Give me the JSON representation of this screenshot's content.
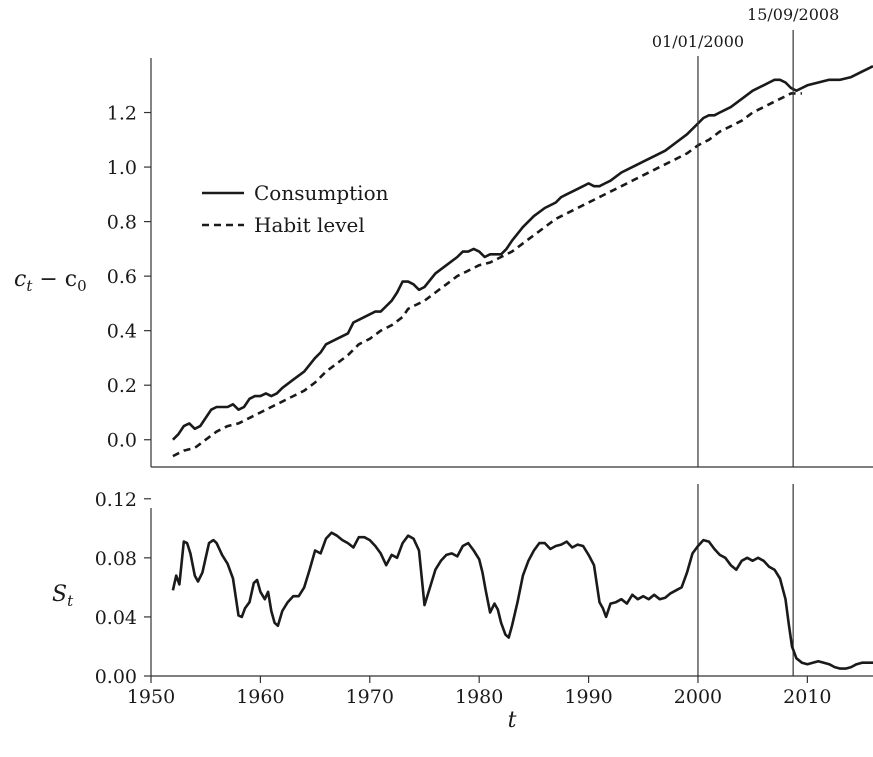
{
  "chart_data": [
    {
      "type": "line",
      "ylabel": "c_t − c_0",
      "ylim": [
        -0.1,
        1.4
      ],
      "yticks": [
        0.0,
        0.2,
        0.4,
        0.6,
        0.8,
        1.0,
        1.2
      ],
      "ytick_labels": [
        "0.0",
        "0.2",
        "0.4",
        "0.6",
        "0.8",
        "1.0",
        "1.2"
      ],
      "xlim": [
        1950,
        2016
      ],
      "legend": "upper-left",
      "grid": false,
      "series": [
        {
          "name": "Consumption",
          "style": "solid",
          "x": [
            1952.0,
            1952.5,
            1953.0,
            1953.5,
            1954.0,
            1954.5,
            1955.0,
            1955.5,
            1956.0,
            1957.0,
            1957.5,
            1958.0,
            1958.5,
            1959.0,
            1959.5,
            1960.0,
            1960.5,
            1961.0,
            1961.5,
            1962.0,
            1963.0,
            1964.0,
            1965.0,
            1965.5,
            1966.0,
            1966.5,
            1967.0,
            1968.0,
            1968.5,
            1969.0,
            1970.0,
            1970.5,
            1971.0,
            1972.0,
            1972.5,
            1973.0,
            1973.5,
            1974.0,
            1974.5,
            1975.0,
            1976.0,
            1977.0,
            1978.0,
            1978.5,
            1979.0,
            1979.5,
            1980.0,
            1980.5,
            1981.0,
            1981.5,
            1982.0,
            1982.5,
            1983.0,
            1984.0,
            1985.0,
            1986.0,
            1987.0,
            1987.5,
            1988.0,
            1989.0,
            1989.5,
            1990.0,
            1990.5,
            1991.0,
            1991.5,
            1992.0,
            1993.0,
            1994.0,
            1995.0,
            1996.0,
            1997.0,
            1998.0,
            1999.0,
            2000.0,
            2000.5,
            2001.0,
            2001.5,
            2002.0,
            2003.0,
            2004.0,
            2005.0,
            2006.0,
            2006.5,
            2007.0,
            2007.5,
            2008.0,
            2008.5,
            2009.0,
            2009.5,
            2010.0,
            2011.0,
            2012.0,
            2013.0,
            2014.0,
            2015.0,
            2015.5,
            2016.0
          ],
          "y": [
            0.0,
            0.02,
            0.05,
            0.06,
            0.04,
            0.05,
            0.08,
            0.11,
            0.12,
            0.12,
            0.13,
            0.11,
            0.12,
            0.15,
            0.16,
            0.16,
            0.17,
            0.16,
            0.17,
            0.19,
            0.22,
            0.25,
            0.3,
            0.32,
            0.35,
            0.36,
            0.37,
            0.39,
            0.43,
            0.44,
            0.46,
            0.47,
            0.47,
            0.51,
            0.54,
            0.58,
            0.58,
            0.57,
            0.55,
            0.56,
            0.61,
            0.64,
            0.67,
            0.69,
            0.69,
            0.7,
            0.69,
            0.67,
            0.68,
            0.68,
            0.68,
            0.7,
            0.73,
            0.78,
            0.82,
            0.85,
            0.87,
            0.89,
            0.9,
            0.92,
            0.93,
            0.94,
            0.93,
            0.93,
            0.94,
            0.95,
            0.98,
            1.0,
            1.02,
            1.04,
            1.06,
            1.09,
            1.12,
            1.16,
            1.18,
            1.19,
            1.19,
            1.2,
            1.22,
            1.25,
            1.28,
            1.3,
            1.31,
            1.32,
            1.32,
            1.31,
            1.29,
            1.28,
            1.29,
            1.3,
            1.31,
            1.32,
            1.32,
            1.33,
            1.35,
            1.36,
            1.37
          ]
        },
        {
          "name": "Habit level",
          "style": "dashed",
          "x": [
            1952.0,
            1953.0,
            1954.0,
            1955.0,
            1956.0,
            1957.0,
            1958.0,
            1959.0,
            1960.0,
            1961.0,
            1962.0,
            1963.0,
            1964.0,
            1965.0,
            1966.0,
            1967.0,
            1968.0,
            1969.0,
            1970.0,
            1971.0,
            1972.0,
            1973.0,
            1973.5,
            1974.0,
            1975.0,
            1976.0,
            1977.0,
            1978.0,
            1979.0,
            1980.0,
            1981.0,
            1982.0,
            1983.0,
            1984.0,
            1985.0,
            1986.0,
            1987.0,
            1988.0,
            1989.0,
            1990.0,
            1991.0,
            1992.0,
            1993.0,
            1994.0,
            1995.0,
            1996.0,
            1997.0,
            1998.0,
            1999.0,
            2000.0,
            2001.0,
            2002.0,
            2003.0,
            2004.0,
            2005.0,
            2006.0,
            2007.0,
            2008.0,
            2008.5,
            2009.0,
            2009.5
          ],
          "y": [
            -0.06,
            -0.04,
            -0.03,
            0.0,
            0.03,
            0.05,
            0.06,
            0.08,
            0.1,
            0.12,
            0.14,
            0.16,
            0.18,
            0.21,
            0.25,
            0.28,
            0.31,
            0.35,
            0.37,
            0.4,
            0.42,
            0.45,
            0.48,
            0.49,
            0.51,
            0.54,
            0.57,
            0.6,
            0.62,
            0.64,
            0.65,
            0.67,
            0.69,
            0.72,
            0.75,
            0.78,
            0.81,
            0.83,
            0.85,
            0.87,
            0.89,
            0.91,
            0.93,
            0.95,
            0.97,
            0.99,
            1.01,
            1.03,
            1.05,
            1.08,
            1.1,
            1.13,
            1.15,
            1.17,
            1.2,
            1.22,
            1.24,
            1.26,
            1.27,
            1.27,
            1.27
          ]
        }
      ]
    },
    {
      "type": "line",
      "ylabel": "S_t",
      "xlabel": "t",
      "ylim": [
        0.0,
        0.12
      ],
      "yticks": [
        0.0,
        0.04,
        0.08,
        0.12
      ],
      "ytick_labels": [
        "0.00",
        "0.04",
        "0.08",
        "0.12"
      ],
      "xlim": [
        1950,
        2016
      ],
      "xticks": [
        1950,
        1960,
        1970,
        1980,
        1990,
        2000,
        2010
      ],
      "xtick_labels": [
        "1950",
        "1960",
        "1970",
        "1980",
        "1990",
        "2000",
        "2010"
      ],
      "grid": false,
      "series": [
        {
          "style": "solid",
          "x": [
            1952.0,
            1952.3,
            1952.6,
            1953.0,
            1953.3,
            1953.6,
            1954.0,
            1954.3,
            1954.7,
            1955.0,
            1955.3,
            1955.7,
            1956.0,
            1956.5,
            1957.0,
            1957.5,
            1958.0,
            1958.3,
            1958.6,
            1959.0,
            1959.4,
            1959.7,
            1960.0,
            1960.4,
            1960.7,
            1961.0,
            1961.3,
            1961.6,
            1962.0,
            1962.5,
            1963.0,
            1963.5,
            1964.0,
            1964.5,
            1965.0,
            1965.5,
            1966.0,
            1966.5,
            1967.0,
            1967.5,
            1968.0,
            1968.5,
            1969.0,
            1969.5,
            1970.0,
            1970.5,
            1971.0,
            1971.5,
            1972.0,
            1972.5,
            1973.0,
            1973.5,
            1974.0,
            1974.5,
            1975.0,
            1975.5,
            1976.0,
            1976.5,
            1977.0,
            1977.5,
            1978.0,
            1978.5,
            1979.0,
            1979.5,
            1980.0,
            1980.3,
            1980.6,
            1981.0,
            1981.4,
            1981.7,
            1982.0,
            1982.4,
            1982.7,
            1983.0,
            1983.5,
            1984.0,
            1984.5,
            1985.0,
            1985.5,
            1986.0,
            1986.5,
            1987.0,
            1987.5,
            1988.0,
            1988.5,
            1989.0,
            1989.5,
            1990.0,
            1990.5,
            1991.0,
            1991.3,
            1991.6,
            1992.0,
            1992.5,
            1993.0,
            1993.5,
            1994.0,
            1994.5,
            1995.0,
            1995.5,
            1996.0,
            1996.5,
            1997.0,
            1997.5,
            1998.0,
            1998.5,
            1999.0,
            1999.5,
            2000.0,
            2000.5,
            2001.0,
            2001.5,
            2002.0,
            2002.5,
            2003.0,
            2003.5,
            2004.0,
            2004.5,
            2005.0,
            2005.5,
            2006.0,
            2006.5,
            2007.0,
            2007.5,
            2008.0,
            2008.3,
            2008.6,
            2009.0,
            2009.5,
            2010.0,
            2010.5,
            2011.0,
            2011.5,
            2012.0,
            2012.5,
            2013.0,
            2013.5,
            2014.0,
            2014.5,
            2015.0,
            2015.5,
            2016.0
          ],
          "y": [
            0.058,
            0.068,
            0.062,
            0.091,
            0.09,
            0.083,
            0.068,
            0.064,
            0.07,
            0.08,
            0.09,
            0.092,
            0.09,
            0.082,
            0.076,
            0.066,
            0.041,
            0.04,
            0.046,
            0.05,
            0.063,
            0.065,
            0.057,
            0.052,
            0.057,
            0.044,
            0.036,
            0.034,
            0.044,
            0.05,
            0.054,
            0.054,
            0.06,
            0.072,
            0.085,
            0.083,
            0.093,
            0.097,
            0.095,
            0.092,
            0.09,
            0.087,
            0.094,
            0.094,
            0.092,
            0.088,
            0.083,
            0.075,
            0.082,
            0.08,
            0.09,
            0.095,
            0.093,
            0.085,
            0.048,
            0.06,
            0.072,
            0.078,
            0.082,
            0.083,
            0.081,
            0.088,
            0.09,
            0.085,
            0.079,
            0.07,
            0.058,
            0.043,
            0.049,
            0.045,
            0.036,
            0.028,
            0.026,
            0.034,
            0.05,
            0.068,
            0.078,
            0.085,
            0.09,
            0.09,
            0.086,
            0.088,
            0.089,
            0.091,
            0.087,
            0.089,
            0.088,
            0.082,
            0.075,
            0.05,
            0.046,
            0.04,
            0.049,
            0.05,
            0.052,
            0.049,
            0.055,
            0.052,
            0.054,
            0.052,
            0.055,
            0.052,
            0.053,
            0.056,
            0.058,
            0.06,
            0.07,
            0.083,
            0.088,
            0.092,
            0.091,
            0.086,
            0.082,
            0.08,
            0.075,
            0.072,
            0.078,
            0.08,
            0.078,
            0.08,
            0.078,
            0.074,
            0.072,
            0.066,
            0.052,
            0.035,
            0.02,
            0.012,
            0.009,
            0.008,
            0.009,
            0.01,
            0.009,
            0.008,
            0.006,
            0.005,
            0.005,
            0.006,
            0.008,
            0.009,
            0.009,
            0.009
          ]
        }
      ]
    }
  ],
  "legend": {
    "items": [
      {
        "label": "Consumption",
        "style": "solid"
      },
      {
        "label": "Habit level",
        "style": "dashed"
      }
    ]
  },
  "annotations": [
    {
      "text": "01/01/2000",
      "x": 2000.0
    },
    {
      "text": "15/09/2008",
      "x": 2008.7
    }
  ],
  "axis_labels": {
    "top_y": "c",
    "top_y_sub1": "t",
    "top_y_minus": " − c",
    "top_y_sub2": "0",
    "bottom_y": "S",
    "bottom_y_sub": "t",
    "x": "t"
  },
  "colors": {
    "line": "#1a1a1a",
    "axis": "#333333"
  }
}
